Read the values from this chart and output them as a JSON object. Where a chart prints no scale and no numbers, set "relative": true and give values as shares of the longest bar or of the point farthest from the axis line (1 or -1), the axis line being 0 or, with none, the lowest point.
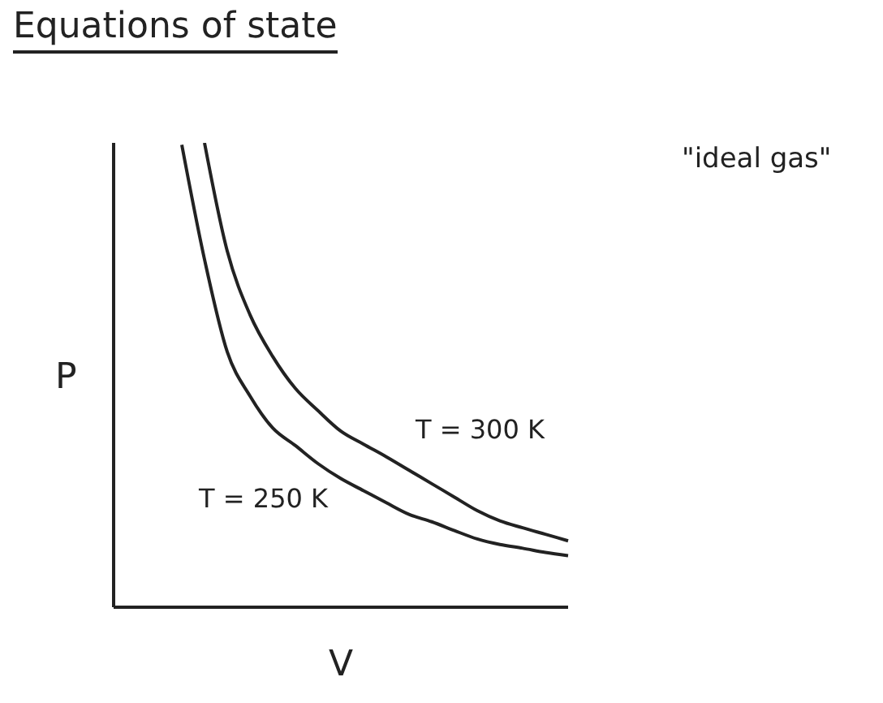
{
  "chart_data": {
    "type": "line",
    "title": "Equations of state",
    "xlabel": "V",
    "ylabel": "P",
    "relative": true,
    "line_style": "solid",
    "annotations": [
      "\"ideal gas\""
    ],
    "categories": [
      null,
      null,
      null,
      null,
      null,
      null,
      null,
      null,
      null,
      null,
      null,
      null,
      null,
      null,
      null,
      null,
      null,
      null,
      null,
      null,
      null
    ],
    "series": [
      {
        "name": "T = 300 K",
        "color": "#222222",
        "values": [
          null,
          null,
          null,
          null,
          1,
          0.767,
          0.63,
          0.54,
          0.471,
          0.423,
          0.379,
          0.351,
          0.324,
          0.295,
          0.266,
          0.237,
          0.208,
          0.186,
          0.171,
          0.157,
          0.143
        ]
      },
      {
        "name": "T = 250 K",
        "color": "#222222",
        "values": [
          null,
          null,
          null,
          0.996,
          0.749,
          0.55,
          0.455,
          0.386,
          0.348,
          0.309,
          0.277,
          0.251,
          0.225,
          0.2,
          0.184,
          0.165,
          0.147,
          0.135,
          0.127,
          0.118,
          0.111
        ]
      }
    ]
  }
}
